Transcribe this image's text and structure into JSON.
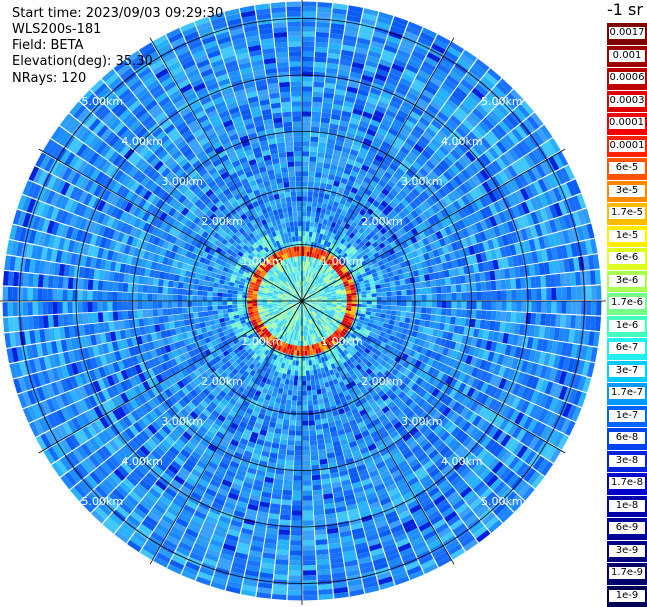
{
  "info": {
    "start_time": "Start time: 2023/09/03 09:29:30",
    "instrument": "WLS200s-181",
    "field": "Field: BETA",
    "elevation": "Elevation(deg): 35.30",
    "nrays": "NRays: 120"
  },
  "colorbar": {
    "title": "-1 sr",
    "labels": [
      "0.0017",
      "0.001",
      "0.0006",
      "0.0003",
      "0.00017",
      "0.0001",
      "6e-5",
      "3e-5",
      "1.7e-5",
      "1e-5",
      "6e-6",
      "3e-6",
      "1.7e-6",
      "1e-6",
      "6e-7",
      "3e-7",
      "1.7e-7",
      "1e-7",
      "6e-8",
      "3e-8",
      "1.7e-8",
      "1e-8",
      "6e-9",
      "3e-9",
      "1.7e-9",
      "1e-9"
    ],
    "colors": [
      "#7f0000",
      "#9e0000",
      "#bd0000",
      "#dc0000",
      "#f00000",
      "#ff2200",
      "#ff5500",
      "#ff8800",
      "#ffbb00",
      "#ffee00",
      "#ddff22",
      "#aaff55",
      "#77ff88",
      "#44ffbb",
      "#22eeee",
      "#00ccff",
      "#0099ff",
      "#0066ff",
      "#0044ee",
      "#0022dd",
      "#0000cc",
      "#0000aa",
      "#000099",
      "#000080",
      "#00006a",
      "#000055"
    ]
  },
  "chart_data": {
    "type": "heatmap",
    "projection": "polar (PPI)",
    "nrays": 120,
    "range_rings_km": [
      1.0,
      2.0,
      3.0,
      4.0,
      5.0
    ],
    "range_labels": [
      "1.00km",
      "2.00km",
      "3.00km",
      "4.00km",
      "5.00km"
    ],
    "max_range_km": 5.3,
    "radial_grid_lines": 12,
    "field": "BETA",
    "scale": "log",
    "description_values": {
      "inner_disk_max_km": 0.9,
      "high_backscatter_ring_km": 0.85,
      "background_level": "1e-8"
    }
  }
}
